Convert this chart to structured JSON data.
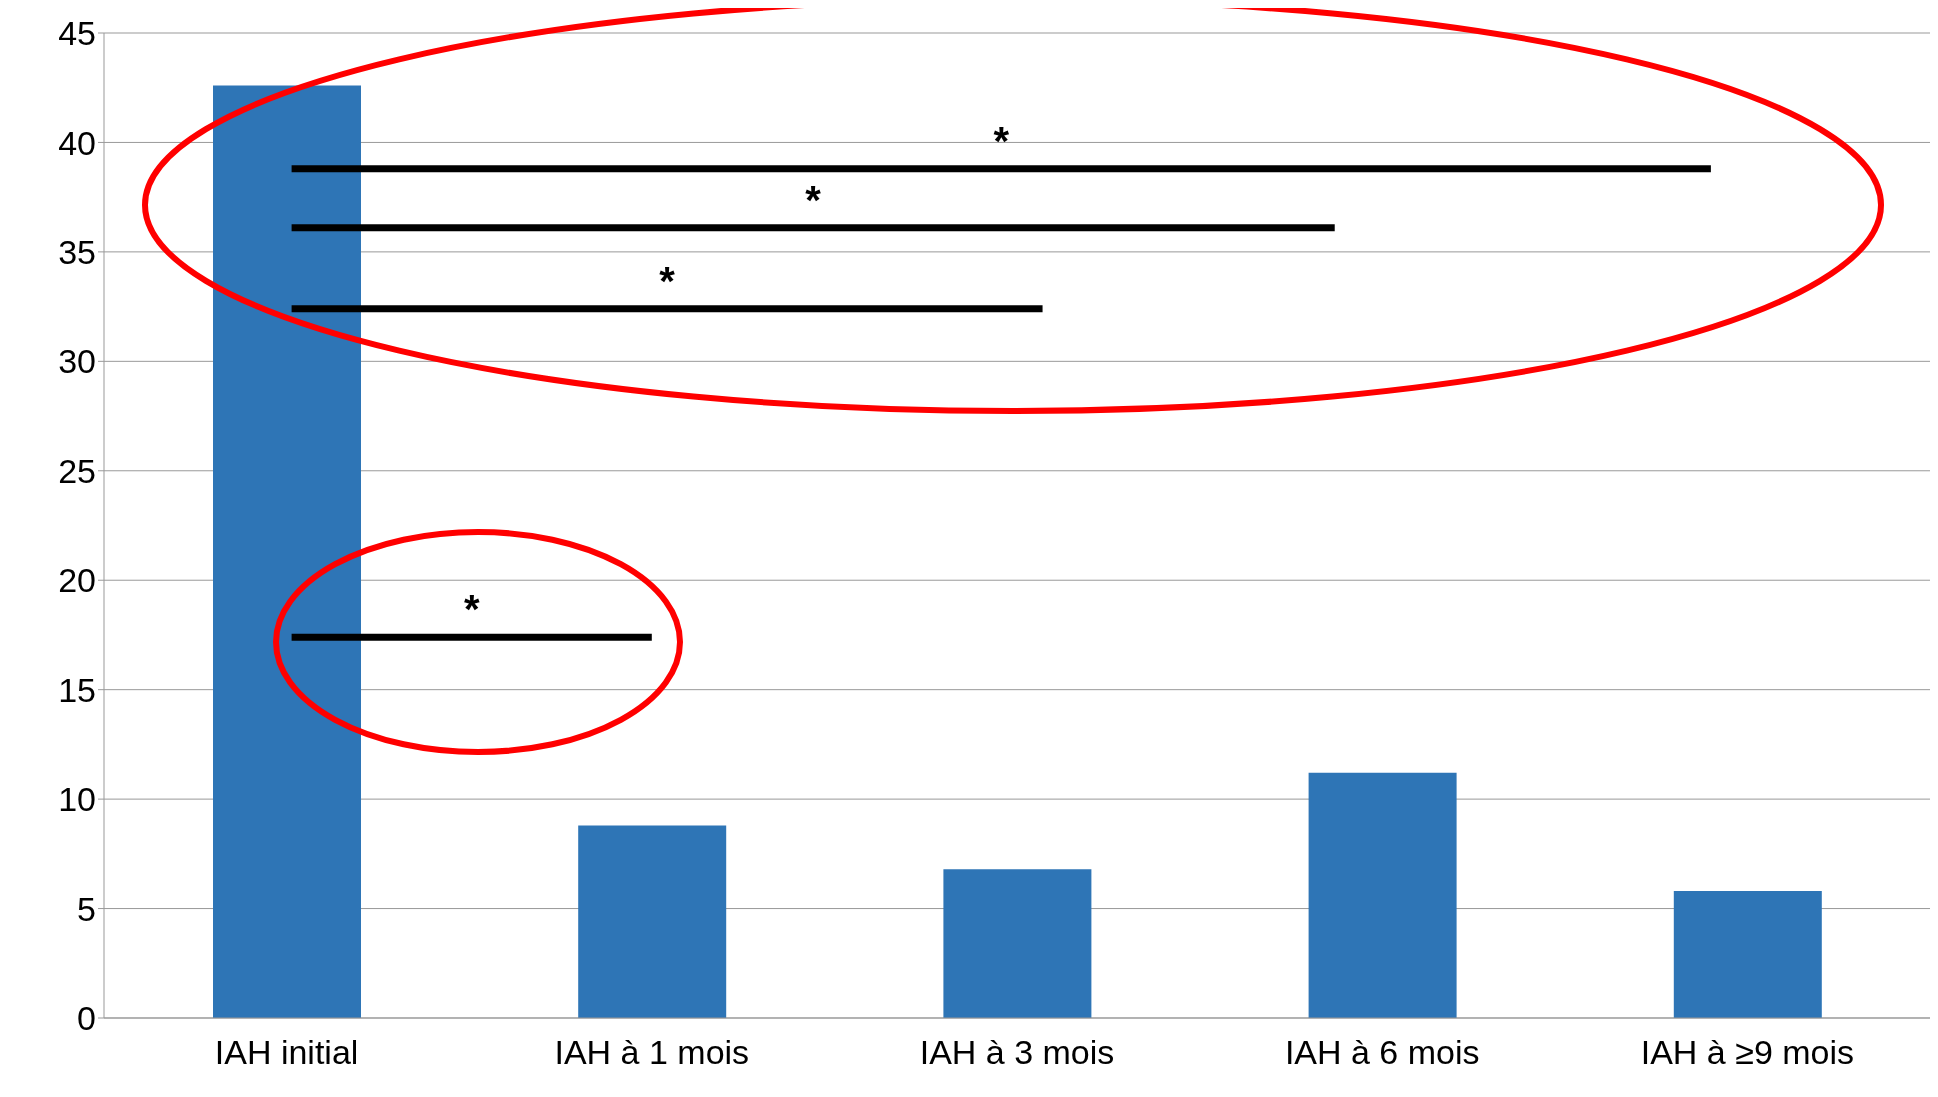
{
  "chart_data": {
    "type": "bar",
    "categories": [
      "IAH initial",
      "IAH à 1 mois",
      "IAH à 3 mois",
      "IAH à 6 mois",
      "IAH à ≥9 mois"
    ],
    "values": [
      42.6,
      8.8,
      6.8,
      11.2,
      5.8
    ],
    "color": "#2e75b6",
    "ylim": [
      0,
      45
    ],
    "yticks": [
      0,
      5,
      10,
      15,
      20,
      25,
      30,
      35,
      40,
      45
    ],
    "grid": "y",
    "annotations": [
      "*",
      "*",
      "*",
      "*"
    ]
  }
}
